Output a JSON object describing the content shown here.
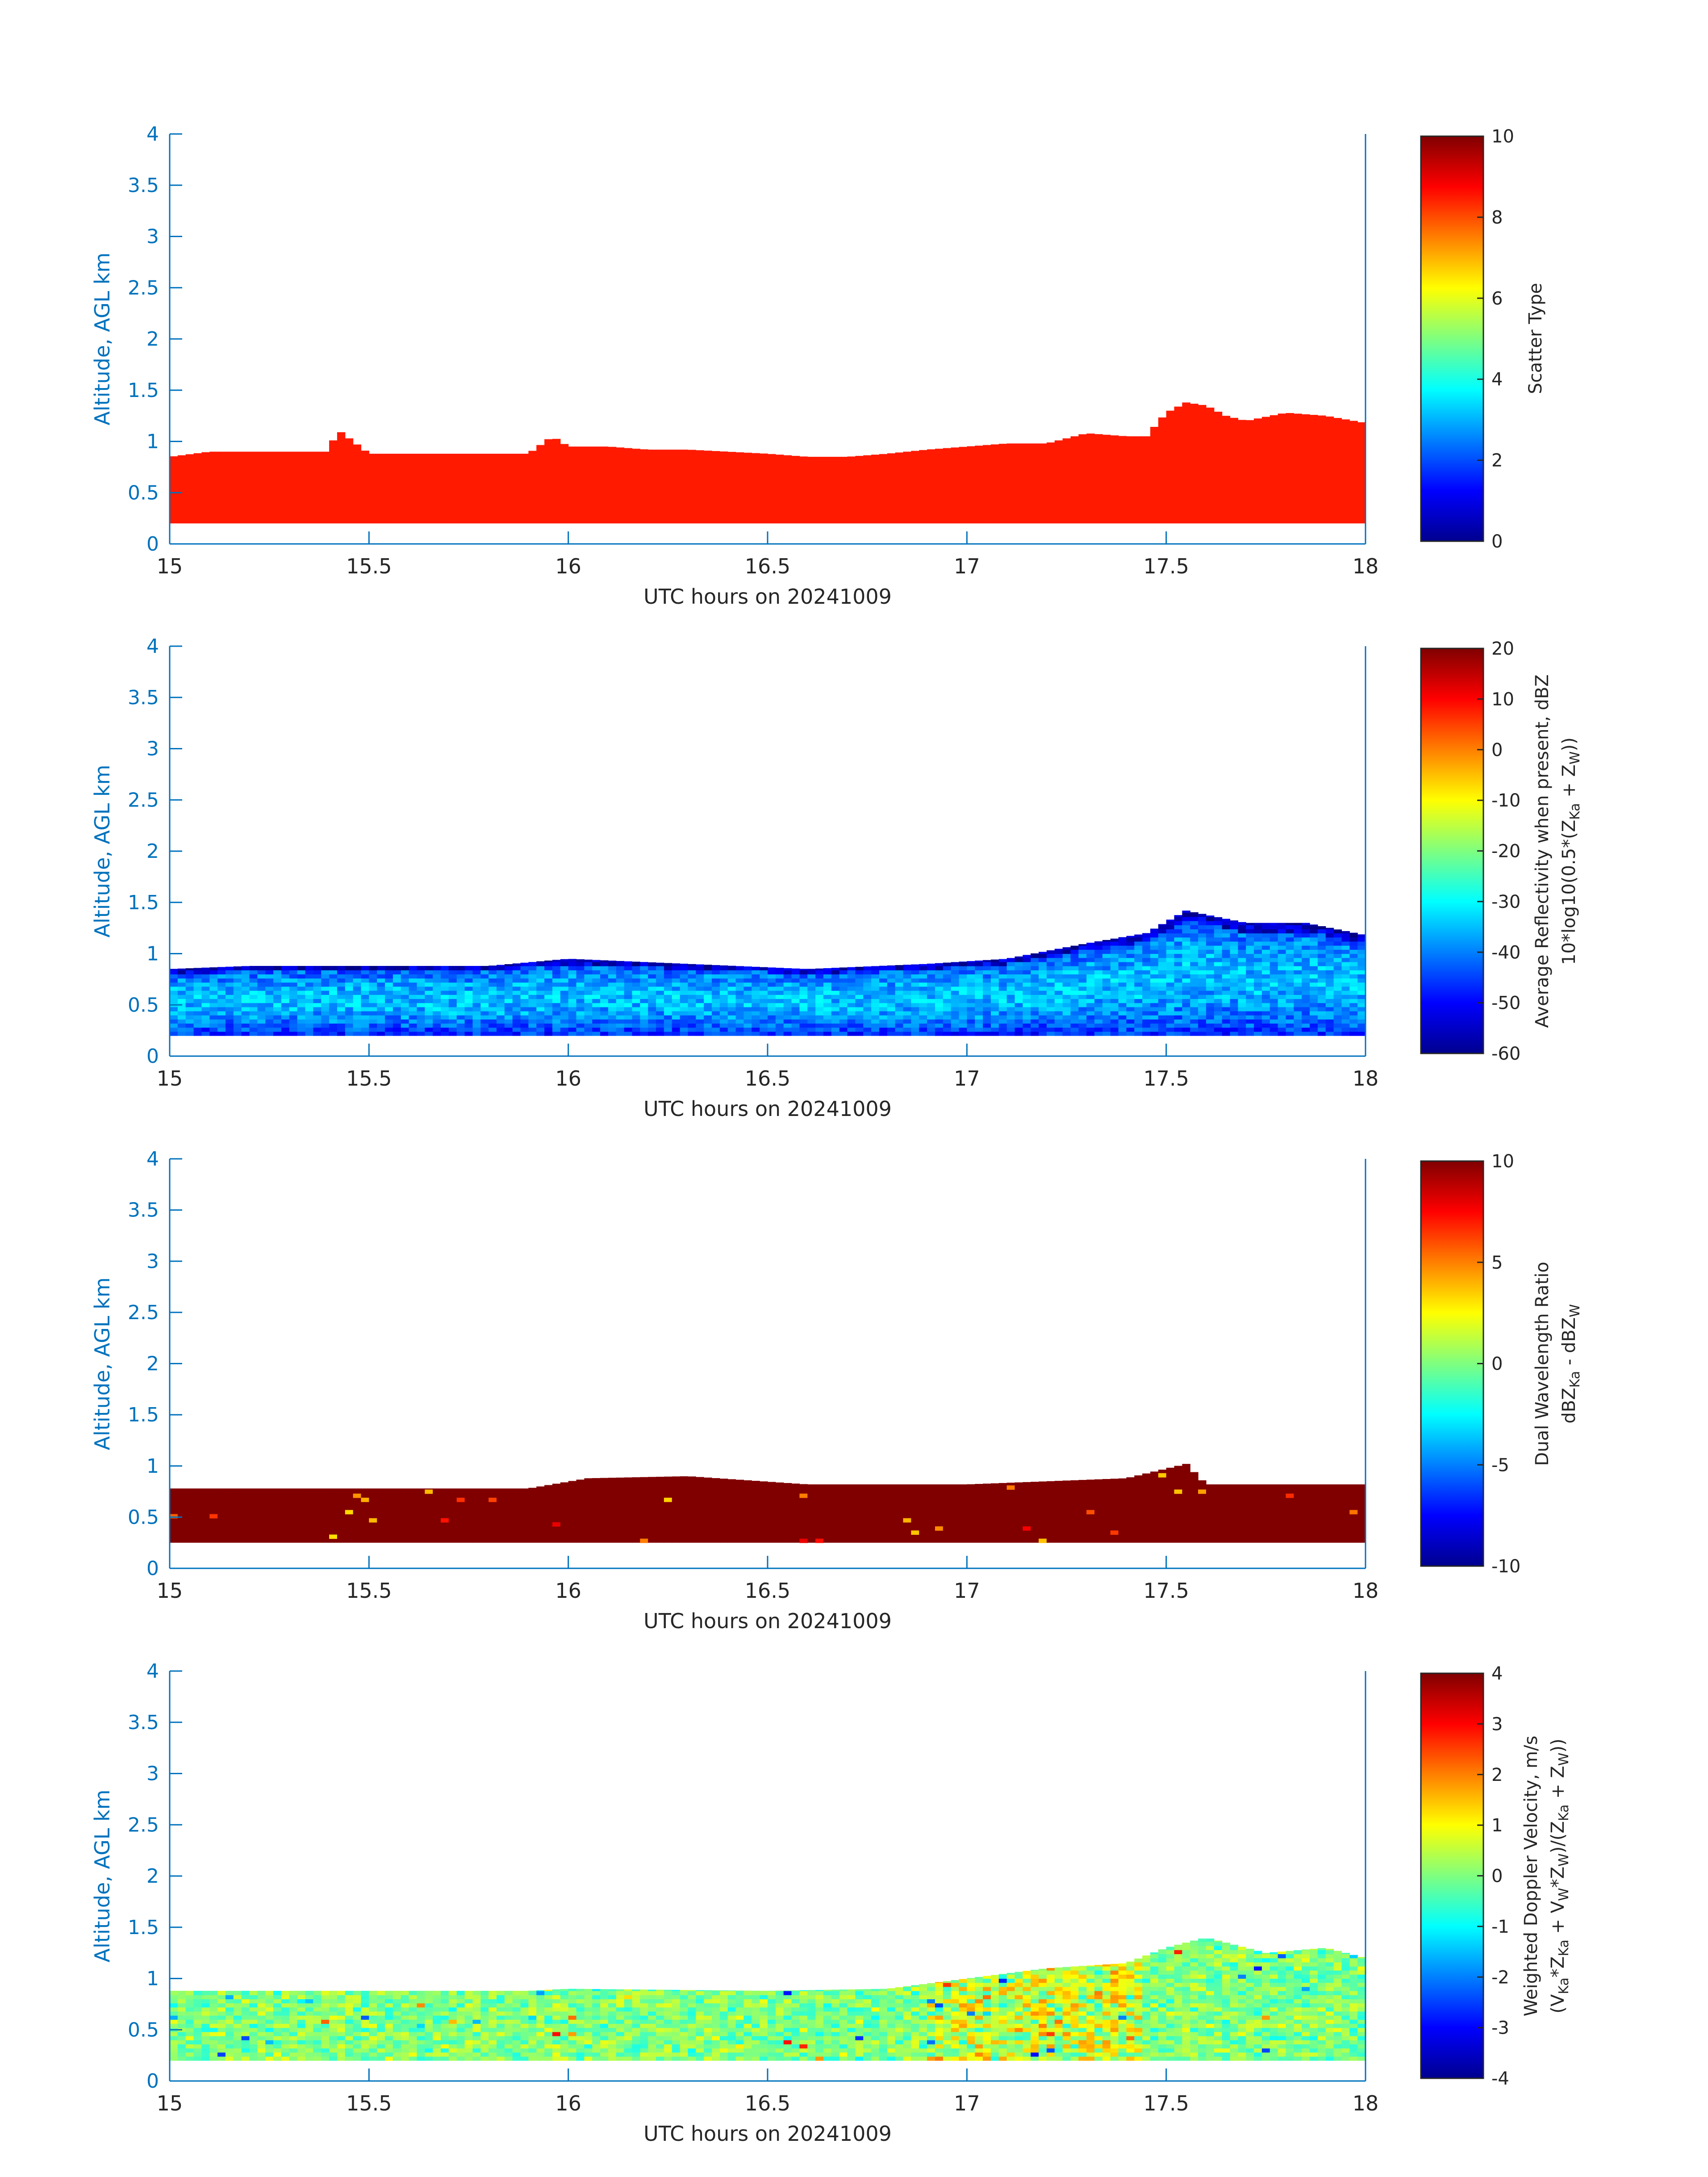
{
  "colors": {
    "axis": "#0072BD",
    "text": "#262626",
    "background": "#ffffff",
    "colormap": "jet"
  },
  "chart_data": [
    {
      "type": "heatmap",
      "panel": "scatter-type",
      "xlabel": "UTC hours on 20241009",
      "ylabel": "Altitude, AGL km",
      "xlim": [
        15,
        18
      ],
      "ylim": [
        0,
        4
      ],
      "x_ticks": [
        "15",
        "15.5",
        "16",
        "16.5",
        "17",
        "17.5",
        "18"
      ],
      "y_ticks": [
        "0",
        "0.5",
        "1",
        "1.5",
        "2",
        "2.5",
        "3",
        "3.5",
        "4"
      ],
      "colorbar": {
        "label_lines": [
          "Scatter Type"
        ],
        "clim": [
          0,
          10
        ],
        "ticks": [
          "0",
          "2",
          "4",
          "6",
          "8",
          "10"
        ]
      },
      "layer": {
        "base_km": 0.2,
        "top_km_by_hour": [
          [
            15.0,
            0.85
          ],
          [
            15.1,
            0.9
          ],
          [
            15.2,
            0.9
          ],
          [
            15.3,
            0.9
          ],
          [
            15.4,
            0.9
          ],
          [
            15.42,
            1.12
          ],
          [
            15.5,
            0.88
          ],
          [
            15.6,
            0.88
          ],
          [
            15.7,
            0.88
          ],
          [
            15.8,
            0.88
          ],
          [
            15.9,
            0.88
          ],
          [
            15.96,
            1.05
          ],
          [
            16.0,
            0.95
          ],
          [
            16.1,
            0.95
          ],
          [
            16.2,
            0.92
          ],
          [
            16.3,
            0.92
          ],
          [
            16.4,
            0.9
          ],
          [
            16.5,
            0.88
          ],
          [
            16.6,
            0.85
          ],
          [
            16.7,
            0.85
          ],
          [
            16.8,
            0.88
          ],
          [
            16.9,
            0.92
          ],
          [
            17.0,
            0.95
          ],
          [
            17.1,
            0.98
          ],
          [
            17.2,
            0.98
          ],
          [
            17.3,
            1.08
          ],
          [
            17.4,
            1.05
          ],
          [
            17.45,
            1.05
          ],
          [
            17.5,
            1.28
          ],
          [
            17.55,
            1.38
          ],
          [
            17.6,
            1.35
          ],
          [
            17.65,
            1.25
          ],
          [
            17.7,
            1.2
          ],
          [
            17.8,
            1.28
          ],
          [
            17.9,
            1.25
          ],
          [
            18.0,
            1.18
          ]
        ],
        "dominant_value": 8.5
      }
    },
    {
      "type": "heatmap",
      "panel": "reflectivity",
      "xlabel": "UTC hours on 20241009",
      "ylabel": "Altitude, AGL km",
      "xlim": [
        15,
        18
      ],
      "ylim": [
        0,
        4
      ],
      "x_ticks": [
        "15",
        "15.5",
        "16",
        "16.5",
        "17",
        "17.5",
        "18"
      ],
      "y_ticks": [
        "0",
        "0.5",
        "1",
        "1.5",
        "2",
        "2.5",
        "3",
        "3.5",
        "4"
      ],
      "colorbar": {
        "label_lines": [
          "Average Reflectivity when present, dBZ",
          "10*log10(0.5*(Z",
          "Ka",
          " + Z",
          "W",
          "))"
        ],
        "clim": [
          -60,
          20
        ],
        "ticks": [
          "-60",
          "-50",
          "-40",
          "-30",
          "-20",
          "-10",
          "0",
          "10",
          "20"
        ]
      },
      "layer": {
        "base_km": 0.2,
        "top_km_by_hour": [
          [
            15.0,
            0.85
          ],
          [
            15.2,
            0.88
          ],
          [
            15.5,
            0.88
          ],
          [
            15.8,
            0.88
          ],
          [
            16.0,
            0.95
          ],
          [
            16.3,
            0.9
          ],
          [
            16.6,
            0.85
          ],
          [
            16.9,
            0.9
          ],
          [
            17.1,
            0.95
          ],
          [
            17.3,
            1.1
          ],
          [
            17.45,
            1.2
          ],
          [
            17.55,
            1.42
          ],
          [
            17.7,
            1.3
          ],
          [
            17.85,
            1.3
          ],
          [
            18.0,
            1.18
          ]
        ],
        "typical_range": [
          -55,
          -30
        ]
      }
    },
    {
      "type": "heatmap",
      "panel": "dual-wavelength-ratio",
      "xlabel": "UTC hours on 20241009",
      "ylabel": "Altitude, AGL km",
      "xlim": [
        15,
        18
      ],
      "ylim": [
        0,
        4
      ],
      "x_ticks": [
        "15",
        "15.5",
        "16",
        "16.5",
        "17",
        "17.5",
        "18"
      ],
      "y_ticks": [
        "0",
        "0.5",
        "1",
        "1.5",
        "2",
        "2.5",
        "3",
        "3.5",
        "4"
      ],
      "colorbar": {
        "label_lines": [
          "Dual Wavelength Ratio",
          "dBZ",
          "Ka",
          " - dBZ",
          "W"
        ],
        "clim": [
          -10,
          10
        ],
        "ticks": [
          "-10",
          "-5",
          "0",
          "5",
          "10"
        ]
      },
      "layer": {
        "base_km": 0.25,
        "top_km_by_hour": [
          [
            15.0,
            0.78
          ],
          [
            15.5,
            0.78
          ],
          [
            15.9,
            0.78
          ],
          [
            16.05,
            0.88
          ],
          [
            16.3,
            0.9
          ],
          [
            16.6,
            0.82
          ],
          [
            17.0,
            0.82
          ],
          [
            17.2,
            0.85
          ],
          [
            17.4,
            0.88
          ],
          [
            17.55,
            1.02
          ],
          [
            17.6,
            0.82
          ],
          [
            18.0,
            0.82
          ]
        ],
        "dominant_value": 10
      }
    },
    {
      "type": "heatmap",
      "panel": "doppler-velocity",
      "xlabel": "UTC hours on 20241009",
      "ylabel": "Altitude, AGL km",
      "xlim": [
        15,
        18
      ],
      "ylim": [
        0,
        4
      ],
      "x_ticks": [
        "15",
        "15.5",
        "16",
        "16.5",
        "17",
        "17.5",
        "18"
      ],
      "y_ticks": [
        "0",
        "0.5",
        "1",
        "1.5",
        "2",
        "2.5",
        "3",
        "3.5",
        "4"
      ],
      "colorbar": {
        "label_lines": [
          "Weighted Doppler Velocity, m/s",
          "(V",
          "Ka",
          "*Z",
          "Ka",
          " + V",
          "W",
          "*Z",
          "W",
          ")/(Z",
          "Ka",
          " + Z",
          "W",
          "))"
        ],
        "clim": [
          -4,
          4
        ],
        "ticks": [
          "-4",
          "-3",
          "-2",
          "-1",
          "0",
          "1",
          "2",
          "3",
          "4"
        ]
      },
      "layer": {
        "base_km": 0.2,
        "top_km_by_hour": [
          [
            15.0,
            0.88
          ],
          [
            15.5,
            0.88
          ],
          [
            15.9,
            0.88
          ],
          [
            16.0,
            0.9
          ],
          [
            16.5,
            0.88
          ],
          [
            16.8,
            0.9
          ],
          [
            17.0,
            1.0
          ],
          [
            17.2,
            1.1
          ],
          [
            17.4,
            1.15
          ],
          [
            17.5,
            1.3
          ],
          [
            17.6,
            1.4
          ],
          [
            17.75,
            1.25
          ],
          [
            17.9,
            1.3
          ],
          [
            18.0,
            1.2
          ]
        ],
        "typical_range": [
          -1.5,
          0.8
        ]
      }
    }
  ]
}
